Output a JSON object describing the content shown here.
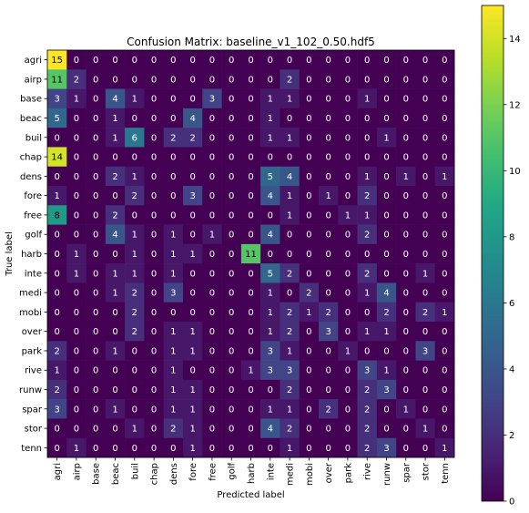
{
  "chart_data": {
    "type": "heatmap",
    "title": "Confusion Matrix: baseline_v1_102_0.50.hdf5",
    "xlabel": "Predicted label",
    "ylabel": "True label",
    "labels": [
      "agri",
      "airp",
      "base",
      "beac",
      "buil",
      "chap",
      "dens",
      "fore",
      "free",
      "golf",
      "harb",
      "inte",
      "medi",
      "mobi",
      "over",
      "park",
      "rive",
      "runw",
      "spar",
      "stor",
      "tenn"
    ],
    "matrix": [
      [
        15,
        0,
        0,
        0,
        0,
        0,
        0,
        0,
        0,
        0,
        0,
        0,
        0,
        0,
        0,
        0,
        0,
        0,
        0,
        0,
        0
      ],
      [
        11,
        2,
        0,
        0,
        0,
        0,
        0,
        0,
        0,
        0,
        0,
        0,
        2,
        0,
        0,
        0,
        0,
        0,
        0,
        0,
        0
      ],
      [
        3,
        1,
        0,
        4,
        1,
        0,
        0,
        0,
        3,
        0,
        0,
        1,
        1,
        0,
        0,
        0,
        1,
        0,
        0,
        0,
        0
      ],
      [
        5,
        0,
        0,
        1,
        0,
        0,
        0,
        4,
        0,
        0,
        0,
        1,
        0,
        0,
        0,
        0,
        0,
        0,
        0,
        0,
        0
      ],
      [
        0,
        0,
        0,
        1,
        6,
        0,
        2,
        2,
        0,
        0,
        0,
        1,
        1,
        0,
        0,
        0,
        0,
        1,
        0,
        0,
        0
      ],
      [
        14,
        0,
        0,
        0,
        0,
        0,
        0,
        0,
        0,
        0,
        0,
        0,
        0,
        0,
        0,
        0,
        0,
        0,
        0,
        0,
        0
      ],
      [
        0,
        0,
        0,
        2,
        1,
        0,
        0,
        0,
        0,
        0,
        0,
        5,
        4,
        0,
        0,
        0,
        1,
        0,
        1,
        0,
        1
      ],
      [
        1,
        0,
        0,
        0,
        2,
        0,
        0,
        3,
        0,
        0,
        0,
        4,
        1,
        0,
        1,
        0,
        2,
        0,
        0,
        0,
        0
      ],
      [
        8,
        0,
        0,
        2,
        0,
        0,
        0,
        0,
        0,
        0,
        0,
        0,
        1,
        0,
        0,
        1,
        1,
        0,
        0,
        0,
        0
      ],
      [
        0,
        0,
        0,
        4,
        1,
        0,
        1,
        0,
        1,
        0,
        0,
        4,
        0,
        0,
        0,
        0,
        2,
        0,
        0,
        0,
        0
      ],
      [
        0,
        1,
        0,
        0,
        1,
        0,
        1,
        1,
        0,
        0,
        11,
        0,
        0,
        0,
        0,
        0,
        0,
        0,
        0,
        0,
        0
      ],
      [
        0,
        1,
        0,
        1,
        1,
        0,
        1,
        0,
        0,
        0,
        0,
        5,
        2,
        0,
        0,
        0,
        2,
        0,
        0,
        1,
        0
      ],
      [
        0,
        0,
        0,
        1,
        2,
        0,
        3,
        0,
        0,
        0,
        0,
        1,
        0,
        2,
        0,
        0,
        1,
        4,
        0,
        0,
        0
      ],
      [
        0,
        0,
        0,
        0,
        2,
        0,
        0,
        0,
        0,
        0,
        0,
        1,
        2,
        1,
        2,
        0,
        0,
        2,
        0,
        2,
        1
      ],
      [
        0,
        0,
        0,
        0,
        2,
        0,
        1,
        1,
        0,
        0,
        0,
        1,
        2,
        0,
        3,
        0,
        1,
        1,
        0,
        0,
        0
      ],
      [
        2,
        0,
        0,
        1,
        0,
        0,
        1,
        1,
        0,
        0,
        0,
        3,
        1,
        0,
        0,
        1,
        0,
        0,
        0,
        3,
        0
      ],
      [
        1,
        0,
        0,
        0,
        0,
        0,
        1,
        0,
        0,
        0,
        1,
        3,
        3,
        0,
        0,
        0,
        3,
        1,
        0,
        0,
        0
      ],
      [
        2,
        0,
        0,
        0,
        0,
        0,
        1,
        1,
        0,
        0,
        0,
        0,
        2,
        0,
        0,
        0,
        2,
        3,
        0,
        0,
        0
      ],
      [
        3,
        0,
        0,
        1,
        0,
        0,
        1,
        1,
        0,
        0,
        0,
        1,
        1,
        0,
        2,
        0,
        2,
        0,
        1,
        0,
        0
      ],
      [
        0,
        0,
        0,
        0,
        1,
        0,
        2,
        1,
        0,
        0,
        0,
        4,
        2,
        0,
        0,
        0,
        2,
        0,
        0,
        1,
        0
      ],
      [
        0,
        1,
        0,
        0,
        0,
        0,
        0,
        1,
        0,
        0,
        0,
        0,
        1,
        0,
        0,
        0,
        2,
        3,
        0,
        0,
        1
      ]
    ],
    "vmin": 0,
    "vmax": 15,
    "colormap": "viridis",
    "colorbar_ticks": [
      "0",
      "2",
      "4",
      "6",
      "8",
      "10",
      "12",
      "14"
    ],
    "colorbar_tick_values": [
      0,
      2,
      4,
      6,
      8,
      10,
      12,
      14
    ],
    "text_colors": {
      "light": "#ffffff",
      "dark": "#000000"
    }
  }
}
